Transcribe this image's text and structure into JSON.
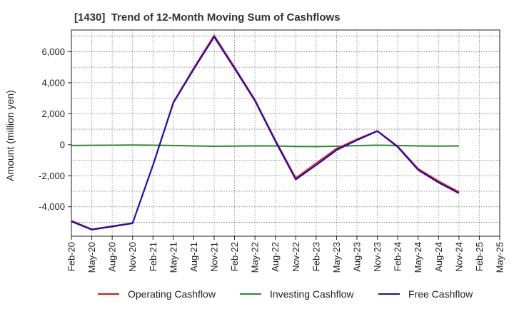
{
  "chart_data": {
    "type": "line",
    "title": "[1430]  Trend of 12-Month Moving Sum of Cashflows",
    "ylabel": "Amount (million yen)",
    "xlabel": "",
    "ylim": [
      -5900,
      7400
    ],
    "yticks": [
      6000,
      4000,
      2000,
      0,
      -2000,
      -4000
    ],
    "ytick_labels": [
      "6,000",
      "4,000",
      "2,000",
      "0",
      "-2,000",
      "-4,000"
    ],
    "categories": [
      "Feb-20",
      "May-20",
      "Aug-20",
      "Nov-20",
      "Feb-21",
      "May-21",
      "Aug-21",
      "Nov-21",
      "Feb-22",
      "May-22",
      "Aug-22",
      "Nov-22",
      "Feb-23",
      "May-23",
      "Aug-23",
      "Nov-23",
      "Feb-24",
      "May-24",
      "Aug-24",
      "Nov-24",
      "Feb-25",
      "May-25"
    ],
    "grid": true,
    "legend_position": "bottom",
    "series": [
      {
        "name": "Operating Cashflow",
        "color": "#e01010",
        "values": [
          -4900,
          -5450,
          -5250,
          -5050,
          -1300,
          2750,
          4950,
          7050,
          5000,
          2900,
          300,
          -2150,
          -1200,
          -250,
          350,
          900,
          -100,
          -1550,
          -2350,
          -3050,
          null,
          null
        ]
      },
      {
        "name": "Investing Cashflow",
        "color": "#2a8a2a",
        "values": [
          -50,
          -40,
          -30,
          -20,
          -30,
          -50,
          -80,
          -100,
          -90,
          -70,
          -80,
          -110,
          -120,
          -100,
          -60,
          -30,
          -50,
          -80,
          -90,
          -80,
          null,
          null
        ]
      },
      {
        "name": "Free Cashflow",
        "color": "#1010c0",
        "values": [
          -4950,
          -5480,
          -5280,
          -5070,
          -1330,
          2700,
          4870,
          6950,
          4910,
          2830,
          220,
          -2250,
          -1320,
          -350,
          290,
          870,
          -150,
          -1630,
          -2440,
          -3130,
          null,
          null
        ]
      }
    ]
  }
}
